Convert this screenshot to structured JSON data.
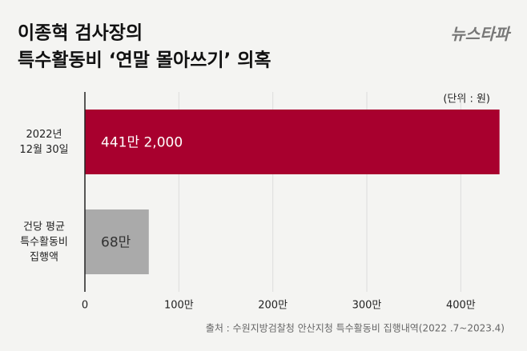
{
  "chart_data": {
    "type": "hbar",
    "title": [
      "이종혁 검사장의",
      "특수활동비 ‘연말 몰아쓰기’ 의혹"
    ],
    "logo": "뉴스타파",
    "unit_note": "(단위 : 원)",
    "source": "출처 : 수원지방검찰청 안산지청 특수활동비 집행내역(2022 .7~2023.4)",
    "categories": [
      "2022년\n12월 30일",
      "건당 평균\n특수활동비\n집행액"
    ],
    "values": [
      4412000,
      680000
    ],
    "value_labels": [
      "441만 2,000",
      "68만"
    ],
    "colors": [
      "#a8002e",
      "#aaaaaa"
    ],
    "label_colors": [
      "#ffffff",
      "#333333"
    ],
    "xlim": [
      0,
      4500000
    ],
    "xticks": [
      0,
      {
        "value": 1000000,
        "label": "100만"
      },
      {
        "value": 2000000,
        "label": "200만"
      },
      {
        "value": 3000000,
        "label": "300만"
      },
      {
        "value": 4000000,
        "label": "400만"
      }
    ],
    "grid": true
  }
}
